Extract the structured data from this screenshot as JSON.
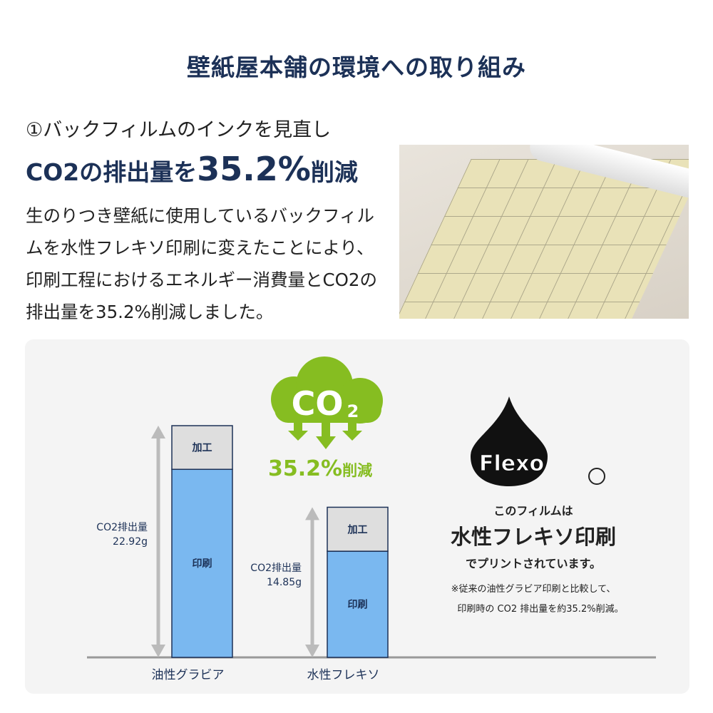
{
  "header": {
    "title": "壁紙屋本舗の環境への取り組み"
  },
  "section": {
    "number": "①",
    "subtitle": "バックフィルムのインクを見直し",
    "headline_prefix": "CO2の排出量を",
    "headline_value": "35.2%",
    "headline_suffix": "削減",
    "body": "生のりつき壁紙に使用しているバックフィルムを水性フレキソ印刷に変えたことにより、印刷工程におけるエネルギー消費量とCO2の排出量を35.2%削減しました。"
  },
  "infographic": {
    "cloud_label": "CO",
    "cloud_sub": "2",
    "reduction": "35.2%",
    "reduction_suffix": "削減",
    "flexo_logo": "Flexo",
    "registered": "®",
    "line1": "このフィルムは",
    "line2": "水性フレキソ印刷",
    "line3": "でプリントされています。",
    "note1": "※従来の油性グラビア印刷と比較して、",
    "note2": "印刷時の CO2 排出量を約35.2%削減。",
    "colors": {
      "green": "#86bd21",
      "print": "#7ab8f0",
      "process": "#dedede",
      "navy": "#1c3157"
    }
  },
  "chart_data": {
    "type": "bar",
    "stacked": true,
    "categories": [
      "油性グラビア",
      "水性フレキソ"
    ],
    "totals_label": [
      "CO2排出量",
      "CO2排出量"
    ],
    "totals_text": [
      "22.92g",
      "14.85g"
    ],
    "totals": [
      22.92,
      14.85
    ],
    "series": [
      {
        "name": "印刷",
        "values": [
          18.6,
          10.5
        ]
      },
      {
        "name": "加工",
        "values": [
          4.32,
          4.35
        ]
      }
    ],
    "ylim": [
      0,
      22.92
    ]
  }
}
